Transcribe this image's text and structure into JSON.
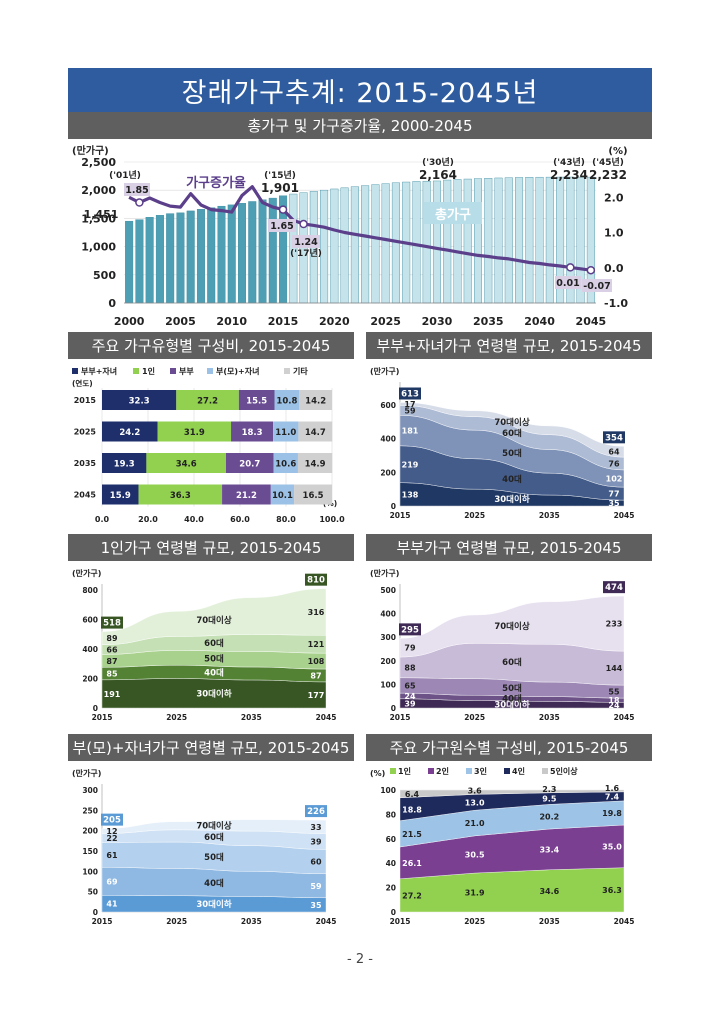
{
  "page": {
    "title": "장래가구추계: 2015-2045년",
    "page_number": "- 2 -"
  },
  "colors": {
    "banner": "#2e5c9e",
    "subheader": "#5f5f5f",
    "bar": "#4e9fb3",
    "bar_future": "#c5e3ea",
    "line": "#5b3f8a"
  },
  "sections": {
    "s1": "총가구 및 가구증가율, 2000-2045",
    "s2": "주요 가구유형별 구성비, 2015-2045",
    "s3": "부부+자녀가구 연령별 규모, 2015-2045",
    "s4": "1인가구 연령별 규모, 2015-2045",
    "s5": "부부가구 연령별 규모, 2015-2045",
    "s6": "부(모)+자녀가구 연령별 규모, 2015-2045",
    "s7": "주요 가구원수별 구성비, 2015-2045"
  },
  "chart_data": [
    {
      "id": "total_households",
      "type": "bar",
      "unit_left": "(만가구)",
      "unit_right": "(%)",
      "x": [
        2000,
        2001,
        2002,
        2003,
        2004,
        2005,
        2006,
        2007,
        2008,
        2009,
        2010,
        2011,
        2012,
        2013,
        2014,
        2015,
        2016,
        2017,
        2018,
        2019,
        2020,
        2021,
        2022,
        2023,
        2024,
        2025,
        2026,
        2027,
        2028,
        2029,
        2030,
        2031,
        2032,
        2033,
        2034,
        2035,
        2036,
        2037,
        2038,
        2039,
        2040,
        2041,
        2042,
        2043,
        2044,
        2045
      ],
      "bars": [
        1451,
        1478,
        1520,
        1555,
        1585,
        1599,
        1633,
        1662,
        1690,
        1717,
        1740,
        1768,
        1800,
        1830,
        1860,
        1901,
        1932,
        1956,
        1979,
        2001,
        2022,
        2042,
        2062,
        2081,
        2099,
        2116,
        2131,
        2145,
        2156,
        2160,
        2164,
        2180,
        2190,
        2198,
        2206,
        2212,
        2217,
        2222,
        2226,
        2229,
        2231,
        2232,
        2233,
        2234,
        2233,
        2232
      ],
      "growth_rate": [
        2.0,
        1.85,
        1.98,
        1.85,
        1.75,
        1.72,
        2.1,
        1.78,
        1.65,
        1.62,
        1.58,
        2.05,
        2.3,
        1.85,
        1.72,
        1.65,
        1.35,
        1.24,
        1.2,
        1.15,
        1.07,
        1.0,
        0.95,
        0.9,
        0.85,
        0.8,
        0.75,
        0.7,
        0.65,
        0.6,
        0.55,
        0.5,
        0.45,
        0.4,
        0.35,
        0.32,
        0.28,
        0.25,
        0.2,
        0.15,
        0.12,
        0.08,
        0.05,
        0.01,
        -0.03,
        -0.07
      ],
      "ylim_left": [
        0,
        2500
      ],
      "ylim_right": [
        -1.0,
        3.0
      ],
      "left_ticks": [
        "0",
        "500",
        "1,000",
        "1,500",
        "2,000",
        "2,500"
      ],
      "right_ticks": [
        "-1.0",
        "0.0",
        "1.0",
        "2.0"
      ],
      "x_ticks": [
        "2000",
        "2005",
        "2010",
        "2015",
        "2020",
        "2025",
        "2030",
        "2035",
        "2040",
        "2045"
      ],
      "series_labels": {
        "bars": "총가구",
        "line": "가구증가율"
      },
      "annotations": {
        "a2000": "1,451",
        "a2001_year": "('01년)",
        "a2001_val": "1.85",
        "a2015_year": "('15년)",
        "a2015_bar": "1,901",
        "a2015_rate": "1.65",
        "a2017_rate": "1.24",
        "a2017_year": "('17년)",
        "a2030_year": "('30년)",
        "a2030_val": "2,164",
        "a2043_year": "('43년)",
        "a2043_val": "2,234",
        "a2045_year": "('45년)",
        "a2045_val": "2,232",
        "a2043_rate": "0.01",
        "a2045_rate": "-0.07"
      }
    },
    {
      "id": "household_types",
      "type": "bar",
      "stacked_percent": true,
      "year_axis_label": "(연도)",
      "categories": [
        "2015",
        "2025",
        "2035",
        "2045"
      ],
      "series": [
        {
          "name": "부부+자녀",
          "color": "#1e2f6b",
          "values": [
            32.3,
            24.2,
            19.3,
            15.9
          ]
        },
        {
          "name": "1인",
          "color": "#92d050",
          "values": [
            27.2,
            31.9,
            34.6,
            36.3
          ]
        },
        {
          "name": "부부",
          "color": "#6a4c93",
          "values": [
            15.5,
            18.3,
            20.7,
            21.2
          ]
        },
        {
          "name": "부(모)+자녀",
          "color": "#9bc2e6",
          "values": [
            10.8,
            11.0,
            10.6,
            10.1
          ]
        },
        {
          "name": "기타",
          "color": "#d0d0d0",
          "values": [
            14.2,
            14.7,
            14.9,
            16.5
          ]
        }
      ],
      "x_ticks": [
        "0.0",
        "20.0",
        "40.0",
        "60.0",
        "80.0",
        "100.0"
      ],
      "unit": "(%)"
    },
    {
      "id": "couple_children_age",
      "type": "area",
      "unit": "(만가구)",
      "years": [
        2015,
        2025,
        2035,
        2045
      ],
      "ylim": [
        0,
        700
      ],
      "y_ticks": [
        "0",
        "200",
        "400",
        "600"
      ],
      "x_ticks": [
        "2015",
        "2025",
        "2035",
        "2045"
      ],
      "series": [
        {
          "name": "30대이하",
          "color": "#1f3864",
          "values": [
            138,
            100,
            65,
            35
          ]
        },
        {
          "name": "40대",
          "color": "#445c8a",
          "values": [
            219,
            180,
            130,
            77
          ]
        },
        {
          "name": "50대",
          "color": "#7f93b8",
          "values": [
            181,
            170,
            140,
            102
          ]
        },
        {
          "name": "60대",
          "color": "#aebbd4",
          "values": [
            59,
            80,
            88,
            76
          ]
        },
        {
          "name": "70대이상",
          "color": "#d6dce8",
          "values": [
            17,
            35,
            52,
            64
          ]
        }
      ],
      "labels": {
        "total_start": "613",
        "total_end": "354",
        "start": [
          "138",
          "219",
          "181",
          "59",
          "17"
        ],
        "end": [
          "35",
          "77",
          "102",
          "76",
          "64"
        ]
      }
    },
    {
      "id": "single_person_age",
      "type": "area",
      "unit": "(만가구)",
      "years": [
        2015,
        2025,
        2035,
        2045
      ],
      "ylim": [
        0,
        800
      ],
      "y_ticks": [
        "0",
        "200",
        "400",
        "600",
        "800"
      ],
      "x_ticks": [
        "2015",
        "2025",
        "2035",
        "2045"
      ],
      "series": [
        {
          "name": "30대이하",
          "color": "#375623",
          "values": [
            191,
            200,
            190,
            177
          ]
        },
        {
          "name": "40대",
          "color": "#548235",
          "values": [
            85,
            90,
            88,
            87
          ]
        },
        {
          "name": "50대",
          "color": "#a9d18e",
          "values": [
            87,
            100,
            105,
            108
          ]
        },
        {
          "name": "60대",
          "color": "#c5e0b4",
          "values": [
            66,
            95,
            115,
            121
          ]
        },
        {
          "name": "70대이상",
          "color": "#e2f0d9",
          "values": [
            89,
            170,
            250,
            316
          ]
        }
      ],
      "labels": {
        "total_start": "518",
        "total_end": "810",
        "start": [
          "191",
          "85",
          "87",
          "66",
          "89"
        ],
        "end": [
          "177",
          "87",
          "108",
          "121",
          "316"
        ]
      }
    },
    {
      "id": "couple_only_age",
      "type": "area",
      "unit": "(만가구)",
      "years": [
        2015,
        2025,
        2035,
        2045
      ],
      "ylim": [
        0,
        500
      ],
      "y_ticks": [
        "0",
        "100",
        "200",
        "300",
        "400",
        "500"
      ],
      "x_ticks": [
        "2015",
        "2025",
        "2035",
        "2045"
      ],
      "series": [
        {
          "name": "30대이하",
          "color": "#3f2a55",
          "values": [
            39,
            32,
            28,
            24
          ]
        },
        {
          "name": "40대",
          "color": "#6c5287",
          "values": [
            24,
            22,
            20,
            18
          ]
        },
        {
          "name": "50대",
          "color": "#9d88b5",
          "values": [
            65,
            70,
            62,
            55
          ]
        },
        {
          "name": "60대",
          "color": "#c8bbd8",
          "values": [
            88,
            150,
            160,
            144
          ]
        },
        {
          "name": "70대이상",
          "color": "#e7e0ef",
          "values": [
            79,
            120,
            180,
            233
          ]
        }
      ],
      "labels": {
        "total_start": "295",
        "total_end": "474",
        "start": [
          "39",
          "24",
          "65",
          "88",
          "79"
        ],
        "end": [
          "24",
          "18",
          "55",
          "144",
          "233"
        ]
      }
    },
    {
      "id": "single_parent_age",
      "type": "area",
      "unit": "(만가구)",
      "years": [
        2015,
        2025,
        2035,
        2045
      ],
      "ylim": [
        0,
        300
      ],
      "y_ticks": [
        "0",
        "50",
        "100",
        "150",
        "200",
        "250",
        "300"
      ],
      "x_ticks": [
        "2015",
        "2025",
        "2035",
        "2045"
      ],
      "series": [
        {
          "name": "30대이하",
          "color": "#5b9bd5",
          "values": [
            41,
            40,
            38,
            35
          ]
        },
        {
          "name": "40대",
          "color": "#8fb8e2",
          "values": [
            69,
            67,
            62,
            59
          ]
        },
        {
          "name": "50대",
          "color": "#b3d0ee",
          "values": [
            61,
            65,
            63,
            60
          ]
        },
        {
          "name": "60대",
          "color": "#cfe1f4",
          "values": [
            22,
            30,
            36,
            39
          ]
        },
        {
          "name": "70대이상",
          "color": "#e5eff9",
          "values": [
            12,
            20,
            28,
            33
          ]
        }
      ],
      "labels": {
        "total_start": "205",
        "total_end": "226",
        "start": [
          "41",
          "69",
          "61",
          "22",
          "12"
        ],
        "end": [
          "35",
          "59",
          "60",
          "39",
          "33"
        ]
      }
    },
    {
      "id": "household_size",
      "type": "area",
      "stacked_percent": true,
      "unit": "(%)",
      "years": [
        2015,
        2025,
        2035,
        2045
      ],
      "ylim": [
        0,
        100
      ],
      "y_ticks": [
        "0",
        "20",
        "40",
        "60",
        "80",
        "100"
      ],
      "x_ticks": [
        "2015",
        "2025",
        "2035",
        "2045"
      ],
      "series": [
        {
          "name": "1인",
          "color": "#92d050",
          "values": [
            27.2,
            31.9,
            34.6,
            36.3
          ]
        },
        {
          "name": "2인",
          "color": "#7b3f91",
          "values": [
            26.1,
            30.5,
            33.4,
            35.0
          ]
        },
        {
          "name": "3인",
          "color": "#9dc3e6",
          "values": [
            21.5,
            21.0,
            20.2,
            19.8
          ]
        },
        {
          "name": "4인",
          "color": "#1f2a5c",
          "values": [
            18.8,
            13.0,
            9.5,
            7.4
          ]
        },
        {
          "name": "5인이상",
          "color": "#c9c9c9",
          "values": [
            6.4,
            3.6,
            2.3,
            1.6
          ]
        }
      ],
      "labels": {
        "y2015": [
          "27.2",
          "26.1",
          "21.5",
          "18.8",
          "6.4"
        ],
        "y2025": [
          "31.9",
          "30.5",
          "21.0",
          "13.0",
          "3.6"
        ],
        "y2035": [
          "34.6",
          "33.4",
          "20.2",
          "9.5",
          "2.3"
        ],
        "y2045": [
          "36.3",
          "35.0",
          "19.8",
          "7.4",
          "1.6"
        ]
      }
    }
  ]
}
